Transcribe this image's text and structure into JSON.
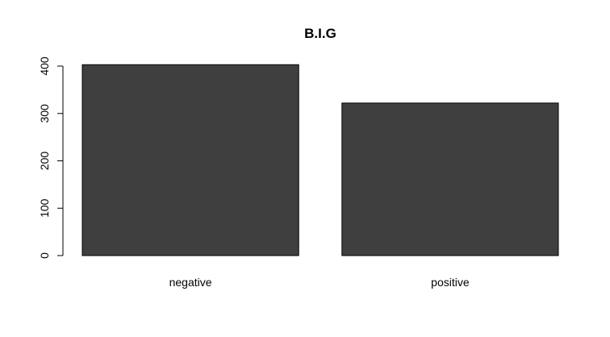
{
  "chart_data": {
    "type": "bar",
    "title": "B.I.G",
    "xlabel": "",
    "ylabel": "",
    "categories": [
      "negative",
      "positive"
    ],
    "values": [
      403,
      322
    ],
    "ylim": [
      0,
      400
    ],
    "yticks": [
      0,
      100,
      200,
      300,
      400
    ],
    "ytick_labels": [
      "0",
      "100",
      "200",
      "300",
      "400"
    ],
    "grid": false,
    "legend": "none",
    "bar_color": "#3f3f3f",
    "bar_edge_color": "#000000"
  }
}
